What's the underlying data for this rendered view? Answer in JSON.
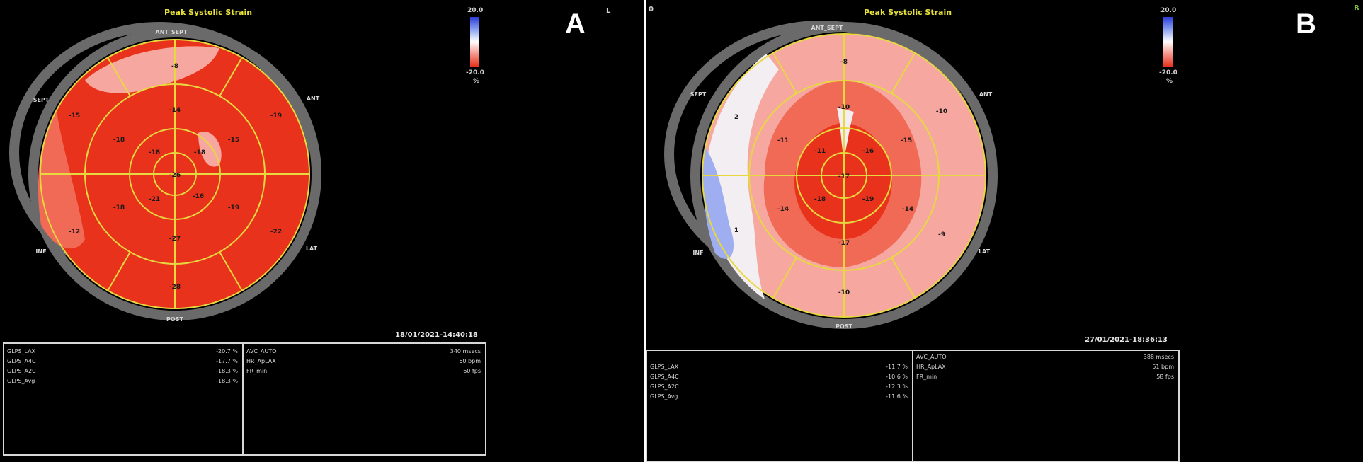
{
  "colors": {
    "strain_red": "#e8321c",
    "strain_mid": "#f06a55",
    "strain_light": "#f6a8a0",
    "strain_white": "#f3eef2",
    "strain_blue": "#9eaef0",
    "grid_yellow": "#e8d840",
    "ring_gray": "#6a6a6a"
  },
  "panel_a": {
    "letter": "A",
    "title": "Peak Systolic Strain",
    "corner_mark": "L",
    "scale_top": "20.0",
    "scale_bottom": "-20.0",
    "scale_unit": "%",
    "wall_labels": {
      "ant_sept": "ANT_SEPT",
      "sept": "SEPT",
      "ant": "ANT",
      "inf": "INF",
      "lat": "LAT",
      "post": "POST"
    },
    "basal": [
      "-8",
      "-19",
      "-22",
      "-28",
      "-12",
      "-15"
    ],
    "mid": [
      "-14",
      "-15",
      "-19",
      "-27",
      "-18",
      "-18"
    ],
    "apical": [
      "-18",
      "-18",
      "-21",
      "-16"
    ],
    "apex": "-26",
    "timestamp": "18/01/2021-14:40:18",
    "left_rows": [
      {
        "label": "GLPS_LAX",
        "value": "-20.7 %"
      },
      {
        "label": "GLPS_A4C",
        "value": "-17.7 %"
      },
      {
        "label": "GLPS_A2C",
        "value": "-18.3 %"
      },
      {
        "label": "GLPS_Avg",
        "value": "-18.3 %"
      }
    ],
    "right_rows": [
      {
        "label": "AVC_AUTO",
        "value": "340 msecs"
      },
      {
        "label": "HR_ApLAX",
        "value": "60 bpm"
      },
      {
        "label": "FR_min",
        "value": "60 fps"
      }
    ]
  },
  "panel_b": {
    "letter": "B",
    "title": "Peak Systolic Strain",
    "corner_mark_left": "0",
    "corner_mark_right": "R",
    "scale_top": "20.0",
    "scale_bottom": "-20.0",
    "scale_unit": "%",
    "wall_labels": {
      "ant_sept": "ANT_SEPT",
      "sept": "SEPT",
      "ant": "ANT",
      "inf": "INF",
      "lat": "LAT",
      "post": "POST"
    },
    "basal": [
      "-8",
      "-10",
      "-9",
      "-10",
      "1",
      "2"
    ],
    "mid": [
      "-10",
      "-15",
      "-14",
      "-17",
      "-14",
      "-11"
    ],
    "apical": [
      "-16",
      "-19",
      "-18",
      "-11"
    ],
    "apex": "-17",
    "timestamp": "27/01/2021-18:36:13",
    "left_rows": [
      {
        "label": "GLPS_LAX",
        "value": "-11.7 %"
      },
      {
        "label": "GLPS_A4C",
        "value": "-10.6 %"
      },
      {
        "label": "GLPS_A2C",
        "value": "-12.3 %"
      },
      {
        "label": "GLPS_Avg",
        "value": "-11.6 %"
      }
    ],
    "right_rows": [
      {
        "label": "AVC_AUTO",
        "value": "388 msecs"
      },
      {
        "label": "HR_ApLAX",
        "value": "51 bpm"
      },
      {
        "label": "FR_min",
        "value": "58 fps"
      }
    ]
  }
}
